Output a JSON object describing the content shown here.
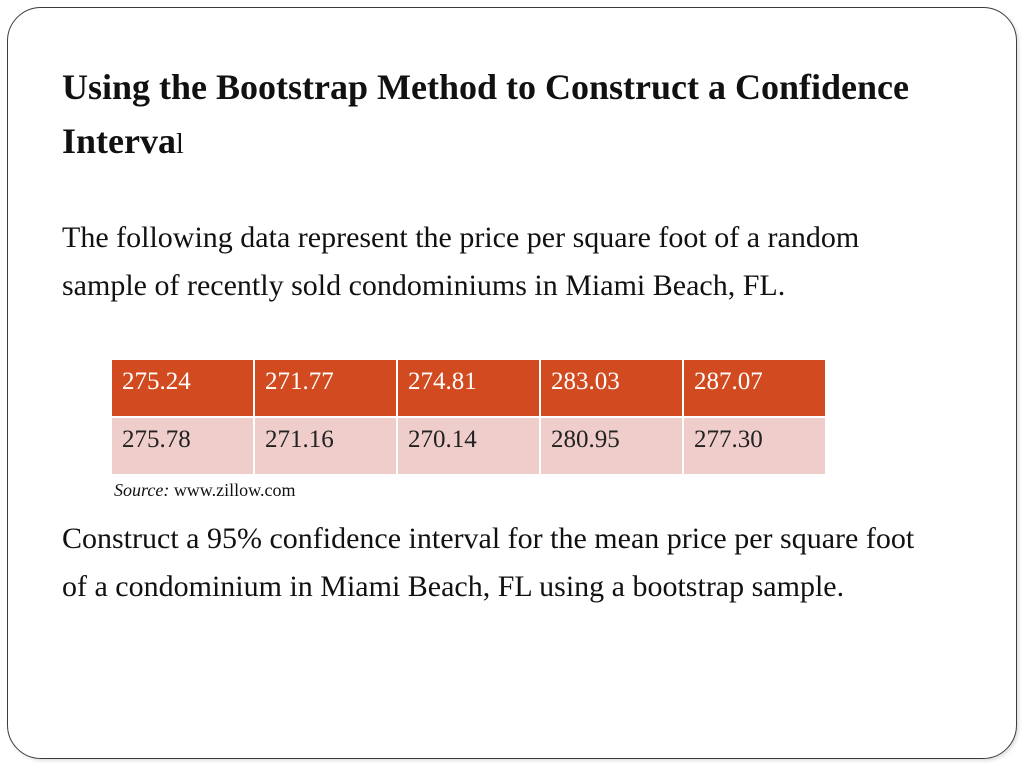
{
  "slide": {
    "title_main": "Using the Bootstrap Method to Construct a Confidence Interva",
    "title_tail": "l",
    "intro": "The following data represent the price per square foot of a random sample of recently sold condominiums in Miami Beach, FL.",
    "table": {
      "rows": [
        [
          "275.24",
          "271.77",
          "274.81",
          "283.03",
          "287.07"
        ],
        [
          "275.78",
          "271.16",
          "270.14",
          "280.95",
          "277.30"
        ]
      ],
      "header_color": "#d24a1f",
      "row_color": "#efcdcb"
    },
    "source_label": "Source:",
    "source_value": "www.zillow.com",
    "question": "Construct a 95% confidence interval for the mean price per square foot of a condominium in Miami Beach, FL using a bootstrap sample."
  }
}
